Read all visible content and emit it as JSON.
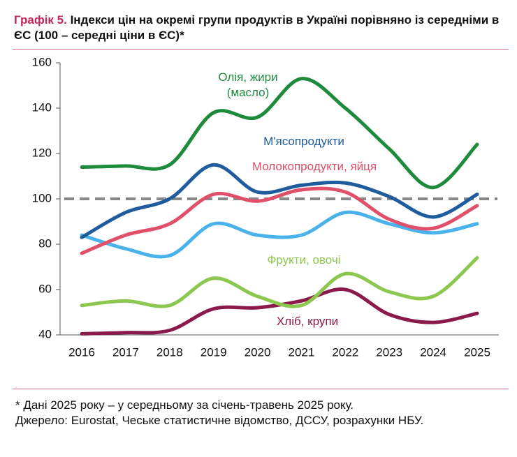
{
  "chart_data": {
    "type": "line",
    "title_label": "Графік 5.",
    "title": "Індекси цін на окремі групи продуктів в Україні порівняно із середніми в ЄС (100 – середні ціни в ЄС)*",
    "categories": [
      "2016",
      "2017",
      "2018",
      "2019",
      "2020",
      "2021",
      "2022",
      "2023",
      "2024",
      "2025"
    ],
    "ylim": [
      40,
      160
    ],
    "yticks": [
      40,
      60,
      80,
      100,
      120,
      140,
      160
    ],
    "reference_line": 100,
    "series": [
      {
        "name": "Олія, жири (масло)",
        "color": "#1e8a3c",
        "values": [
          114,
          114.5,
          115,
          138,
          136,
          153,
          140,
          122,
          105,
          124
        ]
      },
      {
        "name": "М'ясопродукти",
        "color": "#1f5c9e",
        "values": [
          83,
          94,
          100,
          115,
          103,
          106,
          107,
          101,
          92,
          102
        ]
      },
      {
        "name": "Молокопродукти, яйця",
        "color": "#e0506a",
        "values": [
          76,
          84,
          89,
          102,
          99,
          104,
          103,
          91,
          87,
          97
        ]
      },
      {
        "name": null,
        "color": "#4ab2ea",
        "values": [
          84,
          78,
          75,
          89,
          84,
          84,
          94,
          89,
          85,
          89
        ]
      },
      {
        "name": "Фрукти, овочі",
        "color": "#8cc850",
        "values": [
          53,
          55,
          53,
          65,
          57,
          53,
          67,
          59,
          57,
          74
        ]
      },
      {
        "name": "Хліб, крупи",
        "color": "#8b1a4a",
        "values": [
          40.5,
          41,
          42,
          51.5,
          52,
          55,
          60,
          49,
          45.5,
          49.5
        ]
      }
    ]
  },
  "footnote": [
    "* Дані 2025 року – у середньому за січень-травень 2025 року.",
    "Джерело: Eurostat, Чеське статистичне відомство, ДССУ, розрахунки НБУ."
  ]
}
